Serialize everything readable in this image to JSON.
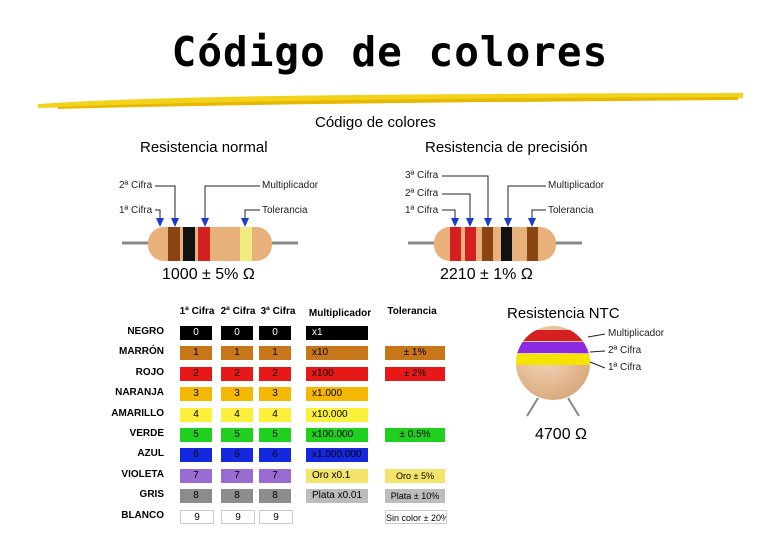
{
  "title": "Código de colores",
  "subtitle": "Código de colores",
  "normal": {
    "heading": "Resistencia normal",
    "labels": {
      "digit2": "2ª Cifra",
      "digit1": "1ª Cifra",
      "multiplier": "Multiplicador",
      "tolerance": "Tolerancia"
    },
    "value": "1000 ± 5% Ω",
    "bands": [
      "#8b4513",
      "#111111",
      "#d42020",
      "#f2ec80"
    ]
  },
  "precision": {
    "heading": "Resistencia de precisión",
    "labels": {
      "digit3": "3ª Cifra",
      "digit2": "2ª Cifra",
      "digit1": "1ª Cifra",
      "multiplier": "Multiplicador",
      "tolerance": "Tolerancia"
    },
    "value": "2210 ± 1% Ω",
    "bands": [
      "#d42020",
      "#d42020",
      "#8b4513",
      "#111111",
      "#8b4513"
    ]
  },
  "ntc": {
    "heading": "Resistencia NTC",
    "labels": {
      "multiplier": "Multiplicador",
      "digit2": "2ª Cifra",
      "digit1": "1ª Cifra"
    },
    "value": "4700 Ω",
    "bands": [
      "#d42020",
      "#8a2be2",
      "#f5e400"
    ]
  },
  "table": {
    "headers": [
      "1ª Cifra",
      "2ª Cifra",
      "3ª Cifra",
      "Multiplicador",
      "Tolerancia"
    ],
    "rows": [
      {
        "name": "NEGRO",
        "color": "#000000",
        "text": "#ffffff",
        "d1": "0",
        "d2": "0",
        "d3": "0",
        "mult": "x1",
        "tol": "",
        "tolColor": ""
      },
      {
        "name": "MARRÓN",
        "color": "#c8761a",
        "text": "#000000",
        "d1": "1",
        "d2": "1",
        "d3": "1",
        "mult": "x10",
        "tol": "± 1%",
        "tolColor": "#c8761a"
      },
      {
        "name": "ROJO",
        "color": "#e81818",
        "text": "#000000",
        "d1": "2",
        "d2": "2",
        "d3": "2",
        "mult": "x100",
        "tol": "± 2%",
        "tolColor": "#e81818"
      },
      {
        "name": "NARANJA",
        "color": "#f5b800",
        "text": "#000000",
        "d1": "3",
        "d2": "3",
        "d3": "3",
        "mult": "x1.000",
        "tol": "",
        "tolColor": ""
      },
      {
        "name": "AMARILLO",
        "color": "#fbf03c",
        "text": "#000000",
        "d1": "4",
        "d2": "4",
        "d3": "4",
        "mult": "x10.000",
        "tol": "",
        "tolColor": ""
      },
      {
        "name": "VERDE",
        "color": "#1fd01f",
        "text": "#000000",
        "d1": "5",
        "d2": "5",
        "d3": "5",
        "mult": "x100.000",
        "tol": "± 0.5%",
        "tolColor": "#1fd01f"
      },
      {
        "name": "AZUL",
        "color": "#1428e0",
        "text": "#000000",
        "d1": "6",
        "d2": "6",
        "d3": "6",
        "mult": "x1.000.000",
        "tol": "",
        "tolColor": ""
      },
      {
        "name": "VIOLETA",
        "color": "#9a6cd2",
        "text": "#000000",
        "d1": "7",
        "d2": "7",
        "d3": "7",
        "mult": "Oro x0.1",
        "tol": "Oro ± 5%",
        "tolColor": "#f3e36a"
      },
      {
        "name": "GRIS",
        "color": "#8c8c8c",
        "text": "#000000",
        "d1": "8",
        "d2": "8",
        "d3": "8",
        "mult": "Plata x0.01",
        "tol": "Plata ± 10%",
        "tolColor": "#bcbcbc"
      },
      {
        "name": "BLANCO",
        "color": "#ffffff",
        "text": "#000000",
        "d1": "9",
        "d2": "9",
        "d3": "9",
        "mult": "",
        "tol": "Sin color ± 20%",
        "tolColor": "#ffffff"
      }
    ],
    "multColors": [
      "#000000",
      "#c8761a",
      "#e81818",
      "#f5b800",
      "#fbf03c",
      "#1fd01f",
      "#1428e0",
      "#f3e36a",
      "#bcbcbc",
      ""
    ]
  }
}
